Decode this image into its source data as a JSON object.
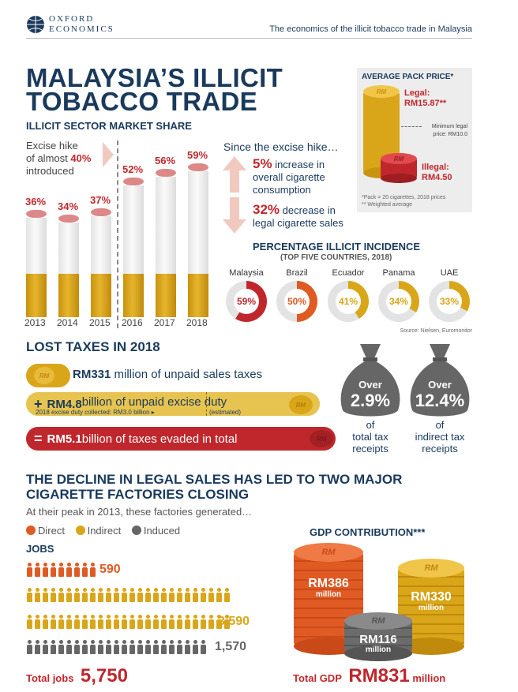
{
  "header": {
    "logo_line1": "OXFORD",
    "logo_line2": "ECONOMICS",
    "doc_title": "The economics of the illicit tobacco trade in Malaysia"
  },
  "title_line1": "MALAYSIA’S ILLICIT",
  "title_line2": "TOBACCO TRADE",
  "market_share": {
    "heading": "ILLICIT SECTOR MARKET SHARE",
    "note_line1": "Excise hike",
    "note_line2a": "of almost ",
    "note_line2b": "40%",
    "note_line3": "introduced",
    "chart_data": {
      "type": "bar",
      "categories": [
        "2013",
        "2014",
        "2015",
        "2016",
        "2017",
        "2018"
      ],
      "values": [
        36,
        34,
        37,
        52,
        56,
        59
      ],
      "labels": [
        "36%",
        "34%",
        "37%",
        "52%",
        "56%",
        "59%"
      ]
    }
  },
  "since": {
    "heading": "Since the excise hike…",
    "up_value": "5%",
    "up_line1": " increase in",
    "up_line2": "overall cigarette",
    "up_line3": "consumption",
    "down_value": "32%",
    "down_line1": " decrease in",
    "down_line2": "legal cigarette sales"
  },
  "pack_price": {
    "heading": "AVERAGE PACK PRICE*",
    "legal_label": "Legal:",
    "legal_value": "RM15.87**",
    "min_line1": "Minimum legal",
    "min_line2": "price: RM10.0",
    "illegal_label": "Illegal:",
    "illegal_value": "RM4.50",
    "foot1": "*Pack = 20 cigarettes, 2018 prices",
    "foot2": "** Weighted average",
    "coin_text": "RM"
  },
  "incidence": {
    "heading": "PERCENTAGE ILLICIT INCIDENCE",
    "subheading": "(TOP FIVE COUNTRIES, 2018)",
    "source": "Source: Nielsen, Euromonitor",
    "countries": [
      {
        "name": "Malaysia",
        "value": 59,
        "label": "59%",
        "color": "#c0272d"
      },
      {
        "name": "Brazil",
        "value": 50,
        "label": "50%",
        "color": "#e05a24"
      },
      {
        "name": "Ecuador",
        "value": 41,
        "label": "41%",
        "color": "#d9a619"
      },
      {
        "name": "Panama",
        "value": 34,
        "label": "34%",
        "color": "#d9a619"
      },
      {
        "name": "UAE",
        "value": 33,
        "label": "33%",
        "color": "#d9a619"
      }
    ]
  },
  "lost_taxes": {
    "heading": "LOST TAXES IN 2018",
    "row1_bold": "RM331",
    "row1_text": " million of unpaid sales taxes",
    "row2_plus": "+",
    "row2_bold": "RM4.8",
    "row2_text": " billion of unpaid excise duty",
    "row2_small": "2018 excise duty collected: RM3.0 billion ▸",
    "row2_est": "(estimated)",
    "row3_eq": "=",
    "row3_bold": "RM5.1",
    "row3_text": " billion of taxes evaded in total",
    "coin_text": "RM",
    "bag1_top": "Over",
    "bag1_value": "2.9%",
    "bag1_of": "of",
    "bag1_line1": "total tax",
    "bag1_line2": "receipts",
    "bag2_top": "Over",
    "bag2_value": "12.4%",
    "bag2_of": "of",
    "bag2_line1": "indirect tax",
    "bag2_line2": "receipts"
  },
  "decline": {
    "heading_line1": "THE DECLINE IN LEGAL SALES HAS LED TO TWO MAJOR",
    "heading_line2": "CIGARETTE FACTORIES CLOSING",
    "intro": "At their peak in 2013, these factories generated…",
    "legend": [
      {
        "label": "Direct",
        "color": "#e05a24"
      },
      {
        "label": "Indirect",
        "color": "#d9a619"
      },
      {
        "label": "Induced",
        "color": "#666666"
      }
    ],
    "jobs_heading": "JOBS",
    "jobs_direct": "590",
    "jobs_indirect": "3,590",
    "jobs_induced": "1,570",
    "total_jobs_label": "Total jobs",
    "total_jobs_value": "5,750",
    "gdp_heading": "GDP CONTRIBUTION***",
    "gdp_direct": "RM386",
    "gdp_indirect": "RM330",
    "gdp_induced": "RM116",
    "million": "million",
    "total_gdp_label": "Total GDP",
    "total_gdp_value": "RM831",
    "total_gdp_unit": " million",
    "coin_text": "RM"
  }
}
